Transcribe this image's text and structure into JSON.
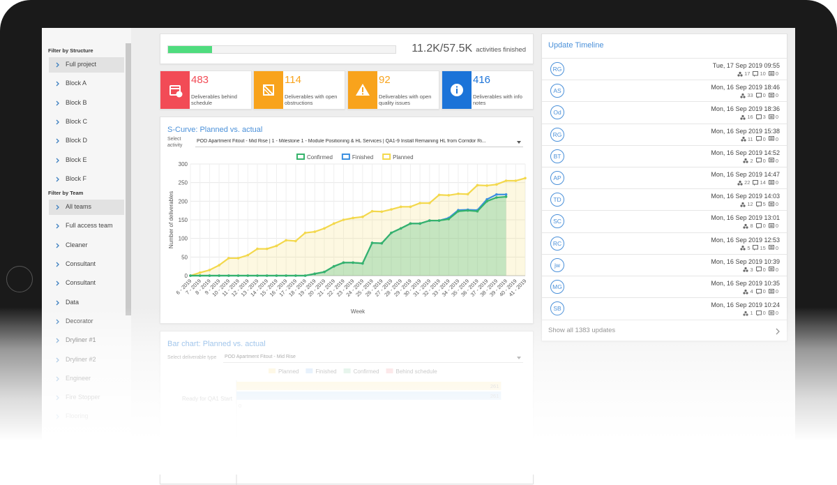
{
  "sidebar": {
    "sections": [
      {
        "title": "Filter by Structure",
        "items": [
          "Full project",
          "Block A",
          "Block B",
          "Block C",
          "Block D",
          "Block E",
          "Block F"
        ]
      },
      {
        "title": "Filter by Team",
        "items": [
          "All teams",
          "Full access team",
          "Cleaner",
          "Consultant",
          "Consultant",
          "Data",
          "Decorator",
          "Dryliner #1",
          "Dryliner #2",
          "Engineer",
          "Fire Stopper",
          "Flooring"
        ]
      }
    ]
  },
  "progress": {
    "label": "11.2K/57.5K",
    "finished": 11200,
    "total": 57500,
    "caption": "activities finished"
  },
  "stats": [
    {
      "value": 483,
      "label": "Deliverables behind schedule",
      "color": "#f24b56"
    },
    {
      "value": 114,
      "label": "Deliverables with open obstructions",
      "color": "#f8a31c"
    },
    {
      "value": 92,
      "label": "Deliverables with open quality issues",
      "color": "#f8a31c"
    },
    {
      "value": 416,
      "label": "Deliverables with info notes",
      "color": "#1b73d8"
    }
  ],
  "chart_data": [
    {
      "type": "line",
      "title": "S-Curve: Planned vs. actual",
      "select_label": "Select activity",
      "select_value": "POD Apartment Fitout - Mid Rise | 1 - Milestone 1 - Module Positioning & HL Services | QA1-9 Install Remaining HL from Corridor Ri...",
      "x_label": "Week",
      "y_label": "Number of deliverables",
      "categories": [
        "6 - 2019",
        "7 - 2019",
        "8 - 2019",
        "9 - 2019",
        "10 - 2019",
        "11 - 2019",
        "12 - 2019",
        "13 - 2019",
        "14 - 2019",
        "15 - 2019",
        "16 - 2019",
        "17 - 2019",
        "18 - 2019",
        "19 - 2019",
        "20 - 2019",
        "21 - 2019",
        "22 - 2019",
        "23 - 2019",
        "24 - 2019",
        "25 - 2019",
        "26 - 2019",
        "27 - 2019",
        "28 - 2019",
        "29 - 2019",
        "30 - 2019",
        "31 - 2019",
        "32 - 2019",
        "33 - 2019",
        "34 - 2019",
        "35 - 2019",
        "36 - 2019",
        "37 - 2019",
        "38 - 2019",
        "39 - 2019",
        "40 - 2019",
        "41 - 2019"
      ],
      "series": [
        {
          "name": "Confirmed",
          "color": "#35b36b",
          "fill": "rgba(53,179,107,0.28)",
          "values": [
            0,
            0,
            0,
            0,
            0,
            0,
            0,
            0,
            0,
            0,
            0,
            0,
            0,
            5,
            10,
            25,
            35,
            35,
            33,
            88,
            87,
            115,
            127,
            140,
            140,
            148,
            148,
            152,
            173,
            175,
            173,
            200,
            210,
            212,
            null,
            null
          ]
        },
        {
          "name": "Finished",
          "color": "#3b8fe0",
          "values": [
            0,
            0,
            0,
            0,
            0,
            0,
            0,
            0,
            0,
            0,
            0,
            0,
            0,
            5,
            10,
            25,
            35,
            35,
            33,
            88,
            87,
            115,
            127,
            140,
            140,
            148,
            148,
            155,
            176,
            177,
            176,
            205,
            218,
            218,
            null,
            null
          ]
        },
        {
          "name": "Planned",
          "color": "#f3d84c",
          "fill": "rgba(245,225,120,0.22)",
          "values": [
            0,
            8,
            15,
            28,
            47,
            47,
            55,
            72,
            72,
            80,
            95,
            93,
            115,
            118,
            127,
            140,
            150,
            155,
            158,
            173,
            172,
            178,
            185,
            185,
            195,
            195,
            217,
            216,
            220,
            219,
            243,
            242,
            245,
            255,
            255,
            262
          ]
        }
      ],
      "ylim": [
        0,
        300
      ],
      "yticks": [
        0,
        50,
        100,
        150,
        200,
        250,
        300
      ],
      "grid": true
    },
    {
      "type": "hbar",
      "title": "Bar chart: Planned vs. actual",
      "select_label": "Select deliverable type",
      "select_value": "POD Apartment Fitout - Mid Rise",
      "categories": [
        "Ready for QA1 Start"
      ],
      "series": [
        {
          "name": "Planned",
          "color": "#fbeab3",
          "values": [
            261
          ]
        },
        {
          "name": "Finished",
          "color": "#b5d5f5",
          "values": [
            261
          ]
        },
        {
          "name": "Confirmed",
          "color": "#b4e0c6",
          "values": [
            0
          ]
        },
        {
          "name": "Behind schedule",
          "color": "#f6b9bd",
          "values": [
            null
          ]
        }
      ],
      "xlim": [
        0,
        280
      ]
    }
  ],
  "timeline": {
    "title": "Update Timeline",
    "entries": [
      {
        "initials": "RG",
        "date": "Tue, 17 Sep 2019 09:55",
        "people": 17,
        "comments": 10,
        "notes": 0
      },
      {
        "initials": "AS",
        "date": "Mon, 16 Sep 2019 18:46",
        "people": 33,
        "comments": 0,
        "notes": 0
      },
      {
        "initials": "Od",
        "date": "Mon, 16 Sep 2019 18:36",
        "people": 16,
        "comments": 3,
        "notes": 0
      },
      {
        "initials": "RG",
        "date": "Mon, 16 Sep 2019 15:38",
        "people": 11,
        "comments": 0,
        "notes": 0
      },
      {
        "initials": "BT",
        "date": "Mon, 16 Sep 2019 14:52",
        "people": 2,
        "comments": 0,
        "notes": 0
      },
      {
        "initials": "AP",
        "date": "Mon, 16 Sep 2019 14:47",
        "people": 22,
        "comments": 14,
        "notes": 0
      },
      {
        "initials": "TD",
        "date": "Mon, 16 Sep 2019 14:03",
        "people": 12,
        "comments": 5,
        "notes": 0
      },
      {
        "initials": "SC",
        "date": "Mon, 16 Sep 2019 13:01",
        "people": 8,
        "comments": 0,
        "notes": 0
      },
      {
        "initials": "RC",
        "date": "Mon, 16 Sep 2019 12:53",
        "people": 5,
        "comments": 15,
        "notes": 0
      },
      {
        "initials": "jw",
        "date": "Mon, 16 Sep 2019 10:39",
        "people": 3,
        "comments": 0,
        "notes": 0
      },
      {
        "initials": "MG",
        "date": "Mon, 16 Sep 2019 10:35",
        "people": 4,
        "comments": 0,
        "notes": 0
      },
      {
        "initials": "SB",
        "date": "Mon, 16 Sep 2019 10:24",
        "people": 1,
        "comments": 0,
        "notes": 0
      }
    ],
    "footer": "Show all 1383 updates"
  }
}
